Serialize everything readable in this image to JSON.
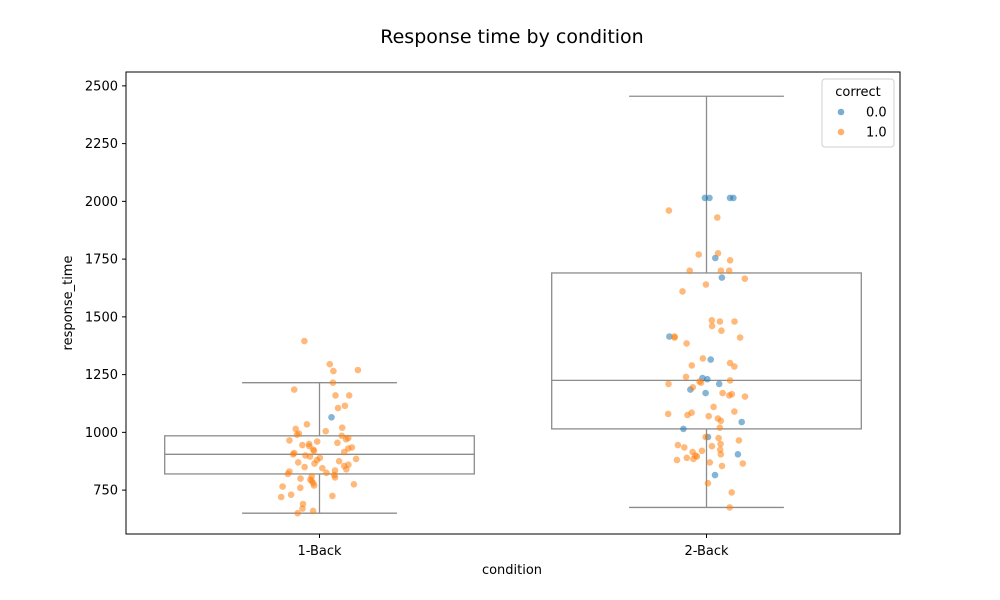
{
  "chart_data": {
    "type": "box",
    "title": "Response time by condition",
    "xlabel": "condition",
    "ylabel": "response_time",
    "categories": [
      "1-Back",
      "2-Back"
    ],
    "ylim": [
      560,
      2560
    ],
    "yticks": [
      750,
      1000,
      1250,
      1500,
      1750,
      2000,
      2250,
      2500
    ],
    "grid": false,
    "legend": {
      "title": "correct",
      "placement": "top-right",
      "entries": [
        {
          "label": "0.0",
          "color": "#1f77b4"
        },
        {
          "label": "1.0",
          "color": "#ff7f0e"
        }
      ]
    },
    "box_color": "#8c8c8c",
    "boxes": [
      {
        "category": "1-Back",
        "whisker_low": 650,
        "q1": 820,
        "median": 905,
        "q3": 985,
        "whisker_high": 1215
      },
      {
        "category": "2-Back",
        "whisker_low": 675,
        "q1": 1015,
        "median": 1225,
        "q3": 1690,
        "whisker_high": 2455
      }
    ],
    "points": [
      {
        "category": "1-Back",
        "correct": "0.0",
        "values": [
          1065
        ]
      },
      {
        "category": "1-Back",
        "correct": "1.0",
        "values": [
          1395,
          1295,
          1270,
          1265,
          1215,
          1185,
          1160,
          1160,
          1115,
          1105,
          1035,
          1020,
          1015,
          1005,
          995,
          990,
          985,
          975,
          970,
          965,
          960,
          955,
          950,
          945,
          940,
          935,
          930,
          925,
          920,
          915,
          910,
          905,
          900,
          895,
          890,
          885,
          880,
          875,
          870,
          865,
          860,
          855,
          850,
          845,
          840,
          835,
          830,
          825,
          820,
          815,
          810,
          805,
          800,
          795,
          790,
          780,
          775,
          770,
          765,
          760,
          730,
          725,
          720,
          690,
          670,
          660,
          650
        ]
      },
      {
        "category": "2-Back",
        "correct": "0.0",
        "values": [
          2015,
          2015,
          2015,
          2015,
          1755,
          1670,
          1415,
          1315,
          1235,
          1230,
          1210,
          1185,
          1170,
          1045,
          1015,
          980,
          905,
          815
        ]
      },
      {
        "category": "2-Back",
        "correct": "1.0",
        "values": [
          1960,
          1930,
          1775,
          1770,
          1745,
          1700,
          1700,
          1700,
          1665,
          1640,
          1610,
          1485,
          1480,
          1480,
          1460,
          1440,
          1415,
          1410,
          1410,
          1385,
          1320,
          1300,
          1290,
          1285,
          1240,
          1225,
          1220,
          1215,
          1210,
          1195,
          1170,
          1165,
          1160,
          1155,
          1110,
          1090,
          1085,
          1080,
          1075,
          1070,
          1060,
          1050,
          1020,
          980,
          975,
          965,
          950,
          945,
          940,
          935,
          925,
          920,
          915,
          905,
          900,
          895,
          890,
          885,
          880,
          870,
          865,
          855,
          780,
          740,
          675
        ]
      }
    ]
  }
}
